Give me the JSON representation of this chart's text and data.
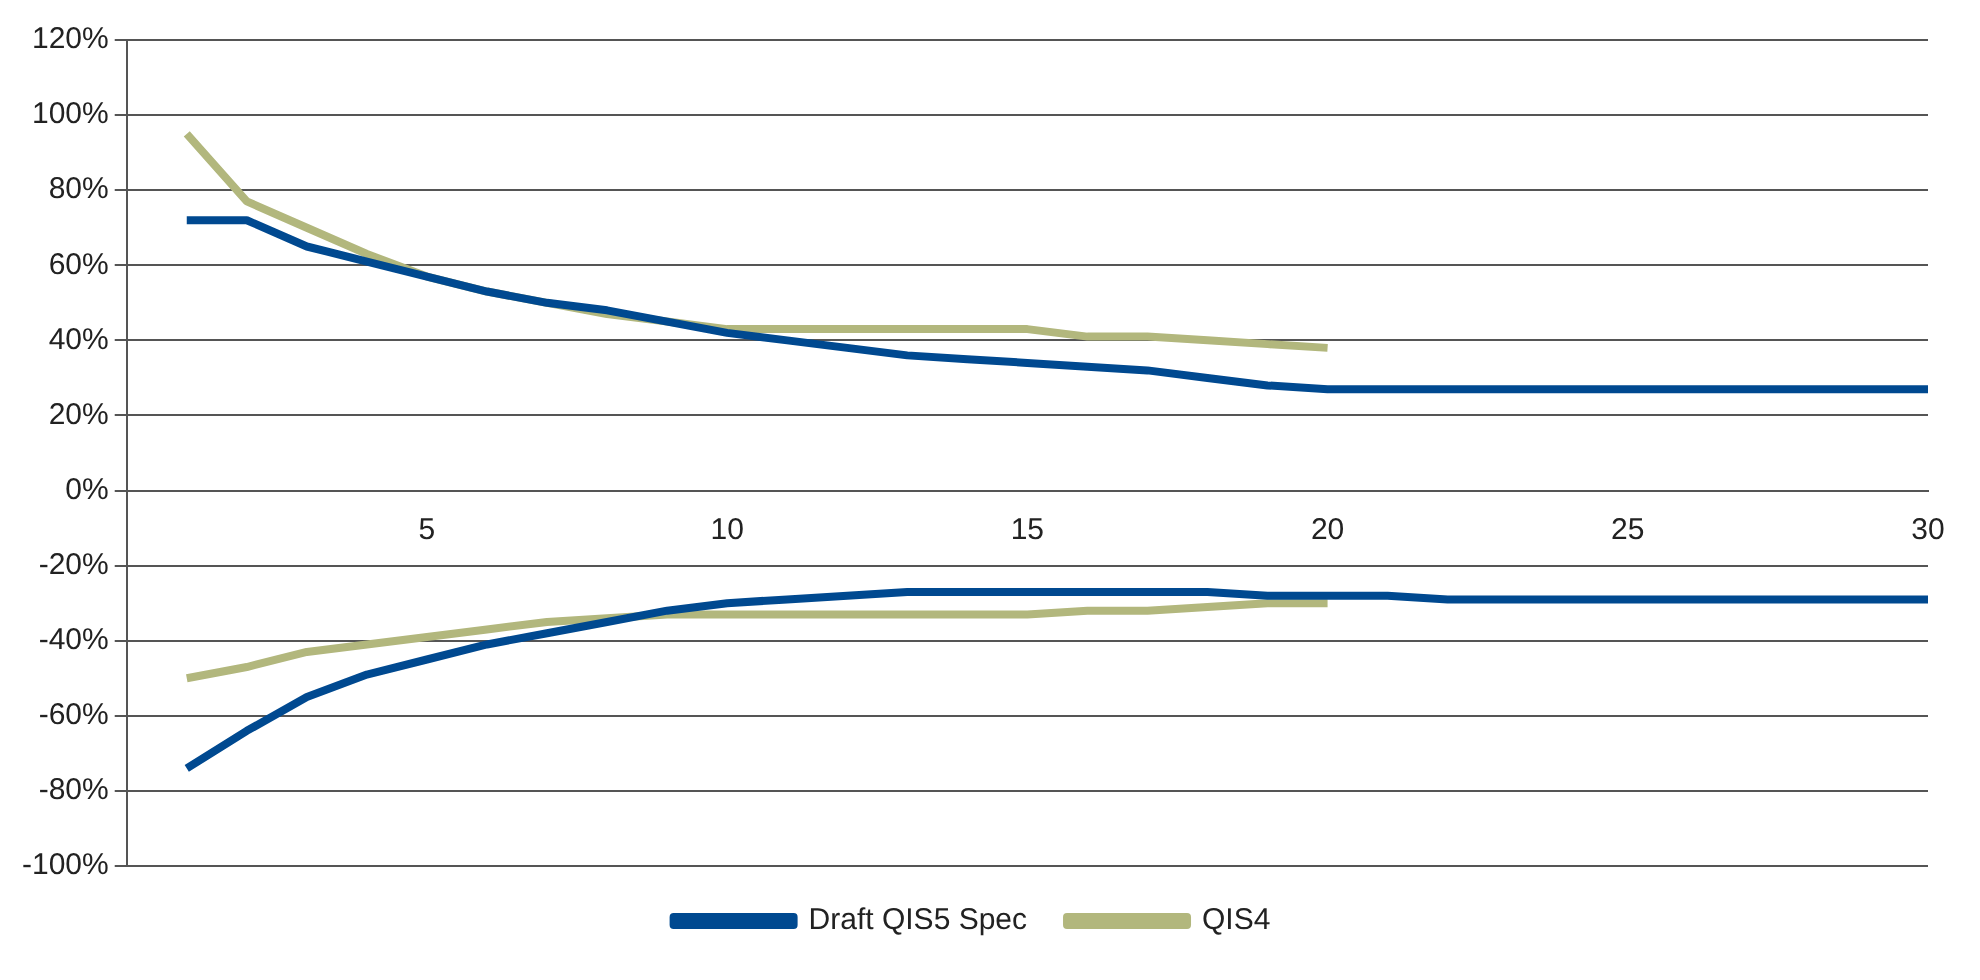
{
  "chart_data": {
    "type": "line",
    "xlim": [
      0,
      30
    ],
    "xticks": [
      5,
      10,
      15,
      20,
      25,
      30
    ],
    "ylim": [
      -100,
      120
    ],
    "yticks": [
      {
        "value": -100,
        "label": "-100%"
      },
      {
        "value": -80,
        "label": "-80%"
      },
      {
        "value": -60,
        "label": "-60%"
      },
      {
        "value": -40,
        "label": "-40%"
      },
      {
        "value": -20,
        "label": "-20%"
      },
      {
        "value": 0,
        "label": "0%"
      },
      {
        "value": 20,
        "label": "20%"
      },
      {
        "value": 40,
        "label": "40%"
      },
      {
        "value": 60,
        "label": "60%"
      },
      {
        "value": 80,
        "label": "80%"
      },
      {
        "value": 100,
        "label": "100%"
      },
      {
        "value": 120,
        "label": "120%"
      }
    ],
    "grid": "y",
    "legend": "bottom",
    "marker": "none",
    "line_style": "solid",
    "series": [
      {
        "name": "Draft QIS5 Spec",
        "color": "#004990",
        "x": [
          1,
          2,
          3,
          4,
          5,
          6,
          7,
          8,
          9,
          10,
          11,
          12,
          13,
          14,
          15,
          16,
          17,
          18,
          19,
          20,
          21,
          22,
          23,
          24,
          25,
          26,
          27,
          28,
          29,
          30
        ],
        "values": [
          72,
          72,
          65,
          61,
          57,
          53,
          50,
          48,
          45,
          42,
          40,
          38,
          36,
          35,
          34,
          33,
          32,
          30,
          28,
          27,
          27,
          27,
          27,
          27,
          27,
          27,
          27,
          27,
          27,
          27
        ]
      },
      {
        "name": "QIS4",
        "color": "#b2b77d",
        "x": [
          1,
          2,
          3,
          4,
          5,
          6,
          7,
          8,
          9,
          10,
          11,
          12,
          13,
          14,
          15,
          16,
          17,
          18,
          19,
          20
        ],
        "values": [
          95,
          77,
          70,
          63,
          57,
          53,
          50,
          47,
          45,
          43,
          43,
          43,
          43,
          43,
          43,
          41,
          41,
          40,
          39,
          38
        ]
      },
      {
        "color": "#004990",
        "x": [
          1,
          2,
          3,
          4,
          5,
          6,
          7,
          8,
          9,
          10,
          11,
          12,
          13,
          14,
          15,
          16,
          17,
          18,
          19,
          20,
          21,
          22,
          23,
          24,
          25,
          26,
          27,
          28,
          29,
          30
        ],
        "values": [
          -74,
          -64,
          -55,
          -49,
          -45,
          -41,
          -38,
          -35,
          -32,
          -30,
          -29,
          -28,
          -27,
          -27,
          -27,
          -27,
          -27,
          -27,
          -28,
          -28,
          -28,
          -29,
          -29,
          -29,
          -29,
          -29,
          -29,
          -29,
          -29,
          -29
        ]
      },
      {
        "color": "#b2b77d",
        "x": [
          1,
          2,
          3,
          4,
          5,
          6,
          7,
          8,
          9,
          10,
          11,
          12,
          13,
          14,
          15,
          16,
          17,
          18,
          19,
          20
        ],
        "values": [
          -50,
          -47,
          -43,
          -41,
          -39,
          -37,
          -35,
          -34,
          -33,
          -33,
          -33,
          -33,
          -33,
          -33,
          -33,
          -32,
          -32,
          -31,
          -30,
          -30
        ]
      }
    ]
  }
}
